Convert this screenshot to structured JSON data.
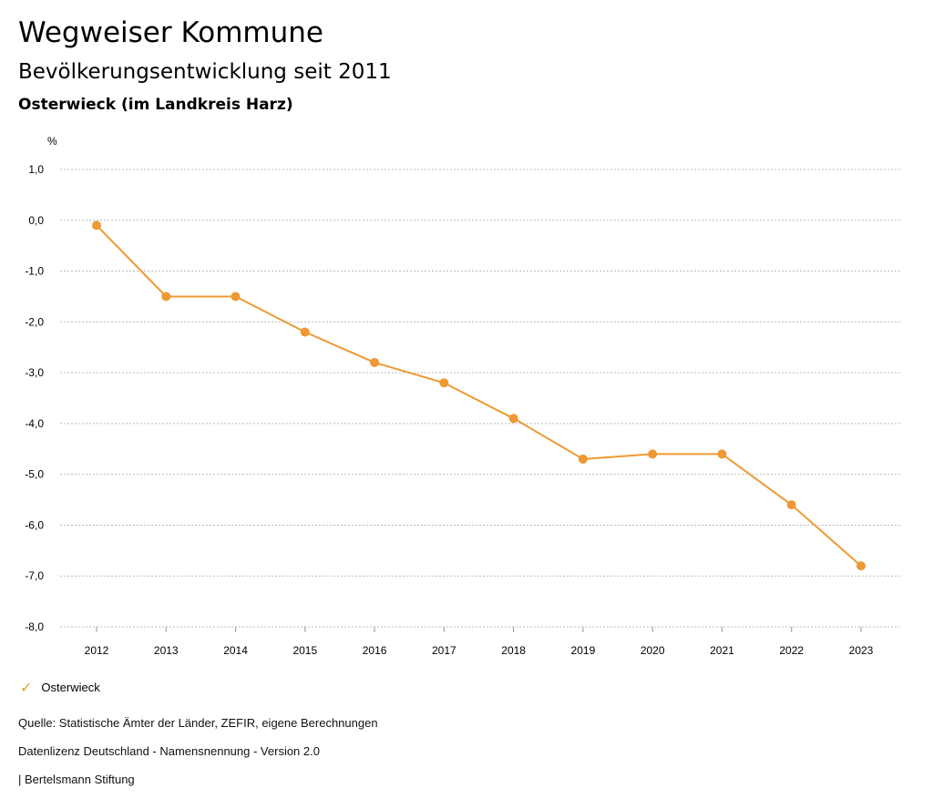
{
  "header": {
    "title": "Wegweiser Kommune",
    "subtitle": "Bevölkerungsentwicklung seit 2011",
    "region": "Osterwieck (im Landkreis Harz)"
  },
  "chart_data": {
    "type": "line",
    "ylabel": "%",
    "ylim": [
      -8.0,
      1.0
    ],
    "yticks": [
      "1,0",
      "0,0",
      "-1,0",
      "-2,0",
      "-3,0",
      "-4,0",
      "-5,0",
      "-6,0",
      "-7,0",
      "-8,0"
    ],
    "ytick_values": [
      1,
      0,
      -1,
      -2,
      -3,
      -4,
      -5,
      -6,
      -7,
      -8
    ],
    "categories": [
      "2012",
      "2013",
      "2014",
      "2015",
      "2016",
      "2017",
      "2018",
      "2019",
      "2020",
      "2021",
      "2022",
      "2023"
    ],
    "series": [
      {
        "name": "Osterwieck",
        "color": "#ee9933",
        "values": [
          -0.1,
          -1.5,
          -1.5,
          -2.2,
          -2.8,
          -3.2,
          -3.9,
          -4.7,
          -4.6,
          -4.6,
          -5.6,
          -6.8
        ]
      }
    ],
    "grid": true,
    "legend": "bottom-left"
  },
  "legend": {
    "icon": "check-icon",
    "label": "Osterwieck"
  },
  "footer": {
    "source": "Quelle: Statistische Ämter der Länder, ZEFIR, eigene Berechnungen",
    "license": "Datenlizenz Deutschland - Namensnennung - Version 2.0",
    "publisher": "| Bertelsmann Stiftung"
  }
}
